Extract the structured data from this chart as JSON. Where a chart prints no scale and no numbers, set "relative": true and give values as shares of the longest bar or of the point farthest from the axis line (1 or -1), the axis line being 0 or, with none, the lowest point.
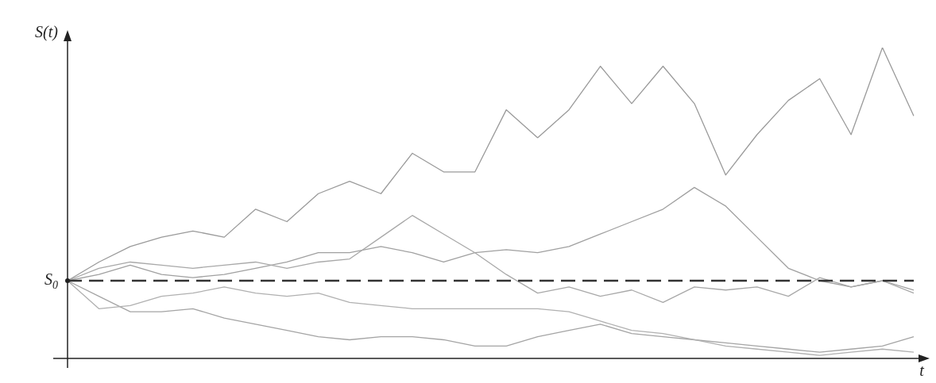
{
  "chart_data": {
    "type": "line",
    "relative": true,
    "xlabel": "t",
    "ylabel": "S(t)",
    "marker": "none",
    "legend": false,
    "categories": [
      null,
      null,
      null,
      null,
      null,
      null,
      null,
      null,
      null,
      null,
      null,
      null,
      null,
      null,
      null,
      null,
      null,
      null,
      null,
      null,
      null,
      null,
      null,
      null,
      null,
      null,
      null,
      null
    ],
    "series": [
      {
        "color": "#9a9a9a",
        "values": [
          0.25,
          0.31,
          0.36,
          0.39,
          0.41,
          0.39,
          0.48,
          0.44,
          0.53,
          0.57,
          0.53,
          0.66,
          0.6,
          0.6,
          0.8,
          0.71,
          0.8,
          0.94,
          0.82,
          0.94,
          0.82,
          0.59,
          0.72,
          0.83,
          0.9,
          0.72,
          1,
          0.78
        ]
      },
      {
        "color": "#a8a8a8",
        "values": [
          0.25,
          0.29,
          0.31,
          0.3,
          0.29,
          0.3,
          0.31,
          0.29,
          0.31,
          0.32,
          0.39,
          0.46,
          0.4,
          0.34,
          0.27,
          0.21,
          0.23,
          0.2,
          0.22,
          0.18,
          0.23,
          0.22,
          0.23,
          0.2,
          0.26,
          0.23,
          0.25,
          0.21
        ]
      },
      {
        "color": "#a0a0a0",
        "values": [
          0.25,
          0.27,
          0.3,
          0.27,
          0.26,
          0.27,
          0.29,
          0.31,
          0.34,
          0.34,
          0.36,
          0.34,
          0.31,
          0.34,
          0.35,
          0.34,
          0.36,
          0.4,
          0.44,
          0.48,
          0.55,
          0.49,
          0.39,
          0.29,
          0.25,
          0.23,
          0.25,
          0.22
        ]
      },
      {
        "color": "#b0b0b0",
        "values": [
          0.25,
          0.16,
          0.17,
          0.2,
          0.21,
          0.23,
          0.21,
          0.2,
          0.21,
          0.18,
          0.17,
          0.16,
          0.16,
          0.16,
          0.16,
          0.16,
          0.15,
          0.12,
          0.09,
          0.08,
          0.06,
          0.04,
          0.03,
          0.02,
          0.01,
          0.02,
          0.03,
          0.02
        ]
      },
      {
        "color": "#a4a4a4",
        "values": [
          0.25,
          0.2,
          0.15,
          0.15,
          0.16,
          0.13,
          0.11,
          0.09,
          0.07,
          0.06,
          0.07,
          0.07,
          0.06,
          0.04,
          0.04,
          0.07,
          0.09,
          0.11,
          0.08,
          0.07,
          0.06,
          0.05,
          0.04,
          0.03,
          0.02,
          0.03,
          0.04,
          0.07
        ]
      }
    ],
    "ref_lines": [
      {
        "axis": "y",
        "value": 0.25,
        "label": "S$_{0}$",
        "color": "#333333",
        "line_style": "dashed"
      }
    ]
  }
}
